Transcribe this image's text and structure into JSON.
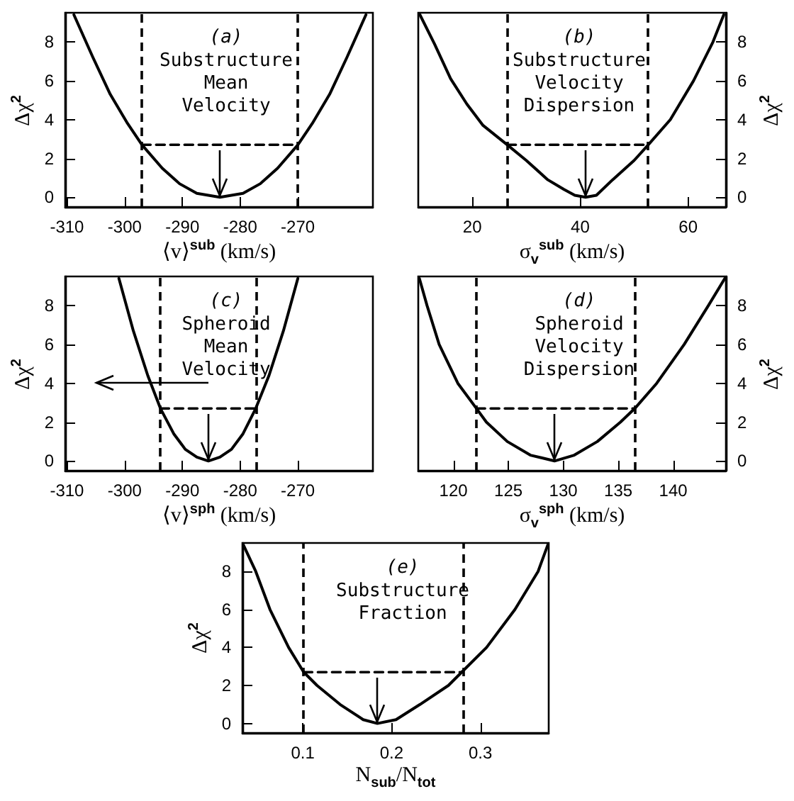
{
  "chart_data": [
    {
      "type": "line",
      "title": "(a)",
      "subtitle": "Substructure Mean Velocity",
      "xlabel": "⟨v⟩$^{sub}$ (km/s)",
      "ylabel": "Δχ$^{2}$",
      "xlim": [
        -310.3,
        -257
      ],
      "xticks": [
        -310,
        -300,
        -290,
        -280,
        -270
      ],
      "ylim": [
        -0.5,
        9.5
      ],
      "yticks": [
        0,
        2,
        4,
        6,
        8
      ],
      "marker": "none",
      "series": [
        {
          "color": "#000000",
          "x": [
            -308.8,
            -305.5,
            -302.5,
            -299.5,
            -297,
            -293.5,
            -290.5,
            -287.5,
            -285.5,
            -283.5,
            -281.5,
            -279.5,
            -276.5,
            -273.5,
            -270,
            -267.5,
            -264.5,
            -261.5,
            -258.2
          ],
          "values": [
            9.4,
            7.2,
            5.3,
            3.8,
            2.7,
            1.5,
            0.7,
            0.2,
            0.1,
            0,
            0.1,
            0.2,
            0.7,
            1.5,
            2.7,
            3.8,
            5.3,
            7.2,
            9.4
          ]
        },
        {
          "color": "#000000",
          "line_style": "dashed",
          "x": [
            -297,
            -270
          ],
          "values": [
            2.7,
            2.7
          ]
        }
      ],
      "ref_lines": [
        {
          "axis": "x",
          "value": -297,
          "line_style": "dashed",
          "color": "#000000"
        },
        {
          "axis": "x",
          "value": -270,
          "line_style": "dashed",
          "color": "#000000"
        }
      ]
    },
    {
      "type": "line",
      "title": "(b)",
      "subtitle": "Substructure Velocity Dispersion",
      "xlabel": "σ$_{v}$$^{sub}$ (km/s)",
      "y2label": "Δχ$^{2}$",
      "xlim": [
        10,
        67
      ],
      "xticks": [
        20,
        40,
        60
      ],
      "y2lim": [
        -0.5,
        9.5
      ],
      "y2ticks": [
        0,
        2,
        4,
        6,
        8
      ],
      "marker": "none",
      "series": [
        {
          "color": "#000000",
          "axis": "y2",
          "x": [
            10.3,
            13,
            16,
            19,
            22,
            26.5,
            30,
            34,
            37,
            39,
            41,
            43,
            46,
            50,
            52.6,
            56.7,
            61,
            64.6,
            66.6
          ],
          "values": [
            9.4,
            7.9,
            6.1,
            4.8,
            3.7,
            2.7,
            1.9,
            0.9,
            0.4,
            0.1,
            0,
            0.1,
            0.9,
            1.9,
            2.7,
            4,
            6,
            8,
            9.4
          ]
        },
        {
          "color": "#000000",
          "axis": "y2",
          "line_style": "dashed",
          "x": [
            26.5,
            52.6
          ],
          "values": [
            2.7,
            2.7
          ]
        }
      ],
      "ref_lines": [
        {
          "axis": "x",
          "value": 26.5,
          "line_style": "dashed",
          "color": "#000000"
        },
        {
          "axis": "x",
          "value": 52.6,
          "line_style": "dashed",
          "color": "#000000"
        }
      ]
    },
    {
      "type": "line",
      "title": "(c)",
      "subtitle": "Spheroid Mean Velocity",
      "xlabel": "⟨v⟩$^{sph}$ (km/s)",
      "ylabel": "Δχ$^{2}$",
      "xlim": [
        -310.3,
        -257
      ],
      "xticks": [
        -310,
        -300,
        -290,
        -280,
        -270
      ],
      "ylim": [
        -0.5,
        9.5
      ],
      "yticks": [
        0,
        2,
        4,
        6,
        8
      ],
      "marker": "none",
      "series": [
        {
          "color": "#000000",
          "x": [
            -301,
            -298.5,
            -296,
            -293.8,
            -291.5,
            -289.5,
            -287.5,
            -285.5,
            -283.5,
            -281.5,
            -279.5,
            -277.3,
            -275,
            -272.5,
            -270
          ],
          "values": [
            9.4,
            6.7,
            4.4,
            2.7,
            1.4,
            0.6,
            0.2,
            0,
            0.2,
            0.6,
            1.4,
            2.7,
            4.4,
            6.7,
            9.4
          ]
        },
        {
          "color": "#000000",
          "line_style": "dashed",
          "x": [
            -293.8,
            -277.3
          ],
          "values": [
            2.7,
            2.7
          ]
        }
      ],
      "ref_lines": [
        {
          "axis": "x",
          "value": -293.8,
          "line_style": "dashed",
          "color": "#000000"
        },
        {
          "axis": "x",
          "value": -277.3,
          "line_style": "dashed",
          "color": "#000000"
        }
      ]
    },
    {
      "type": "line",
      "title": "(d)",
      "subtitle": "Spheroid Velocity Dispersion",
      "xlabel": "σ$_{v}$$^{sph}$ (km/s)",
      "y2label": "Δχ$^{2}$",
      "xlim": [
        116.8,
        144.8
      ],
      "xticks": [
        120,
        125,
        130,
        135,
        140
      ],
      "y2lim": [
        -0.5,
        9.5
      ],
      "y2ticks": [
        0,
        2,
        4,
        6,
        8
      ],
      "marker": "none",
      "series": [
        {
          "color": "#000000",
          "axis": "y2",
          "x": [
            116.9,
            117.6,
            118.7,
            120.4,
            122.1,
            123,
            124.9,
            127,
            129.2,
            131,
            133.1,
            135.2,
            136.5,
            138.5,
            141,
            143.2,
            144.7
          ],
          "values": [
            9.4,
            8,
            6,
            4,
            2.7,
            2,
            1,
            0.3,
            0,
            0.3,
            1,
            2,
            2.7,
            4,
            6,
            8,
            9.4
          ]
        },
        {
          "color": "#000000",
          "axis": "y2",
          "line_style": "dashed",
          "x": [
            122.1,
            136.5
          ],
          "values": [
            2.7,
            2.7
          ]
        }
      ],
      "ref_lines": [
        {
          "axis": "x",
          "value": 122.1,
          "line_style": "dashed",
          "color": "#000000"
        },
        {
          "axis": "x",
          "value": 136.5,
          "line_style": "dashed",
          "color": "#000000"
        }
      ]
    },
    {
      "type": "line",
      "title": "(e)",
      "subtitle": "Substructure Fraction",
      "xlabel": "N$_{sub}$/N$_{tot}$",
      "ylabel": "Δχ$^{2}$",
      "xlim": [
        0.032,
        0.377
      ],
      "xticks": [
        0.1,
        0.2,
        0.3
      ],
      "ylim": [
        -0.5,
        9.5
      ],
      "yticks": [
        0,
        2,
        4,
        6,
        8
      ],
      "marker": "none",
      "series": [
        {
          "color": "#000000",
          "x": [
            0.033,
            0.047,
            0.063,
            0.084,
            0.101,
            0.116,
            0.142,
            0.168,
            0.184,
            0.205,
            0.232,
            0.264,
            0.279,
            0.307,
            0.339,
            0.365,
            0.376
          ],
          "values": [
            9.4,
            8,
            6,
            4,
            2.7,
            2,
            1,
            0.2,
            0,
            0.2,
            1,
            2,
            2.7,
            4,
            6,
            8,
            9.4
          ]
        },
        {
          "color": "#000000",
          "line_style": "dashed",
          "x": [
            0.101,
            0.279
          ],
          "values": [
            2.7,
            2.7
          ]
        }
      ],
      "ref_lines": [
        {
          "axis": "x",
          "value": 0.101,
          "line_style": "dashed",
          "color": "#000000"
        },
        {
          "axis": "x",
          "value": 0.279,
          "line_style": "dashed",
          "color": "#000000"
        }
      ]
    }
  ]
}
